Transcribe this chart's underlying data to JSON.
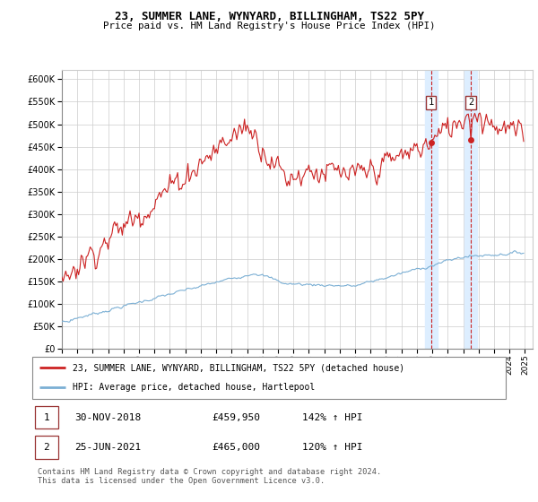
{
  "title": "23, SUMMER LANE, WYNYARD, BILLINGHAM, TS22 5PY",
  "subtitle": "Price paid vs. HM Land Registry's House Price Index (HPI)",
  "legend_line1": "23, SUMMER LANE, WYNYARD, BILLINGHAM, TS22 5PY (detached house)",
  "legend_line2": "HPI: Average price, detached house, Hartlepool",
  "footer": "Contains HM Land Registry data © Crown copyright and database right 2024.\nThis data is licensed under the Open Government Licence v3.0.",
  "sale1_date": "30-NOV-2018",
  "sale1_price": "£459,950",
  "sale1_hpi": "142% ↑ HPI",
  "sale1_price_val": 459950,
  "sale1_year": 2018.917,
  "sale2_date": "25-JUN-2021",
  "sale2_price": "£465,000",
  "sale2_hpi": "120% ↑ HPI",
  "sale2_price_val": 465000,
  "sale2_year": 2021.5,
  "hpi_color": "#7BAFD4",
  "price_color": "#CC2222",
  "shade_color": "#DDEEFF",
  "ylim_min": 0,
  "ylim_max": 620000,
  "xlim_min": 1995,
  "xlim_max": 2025.5
}
